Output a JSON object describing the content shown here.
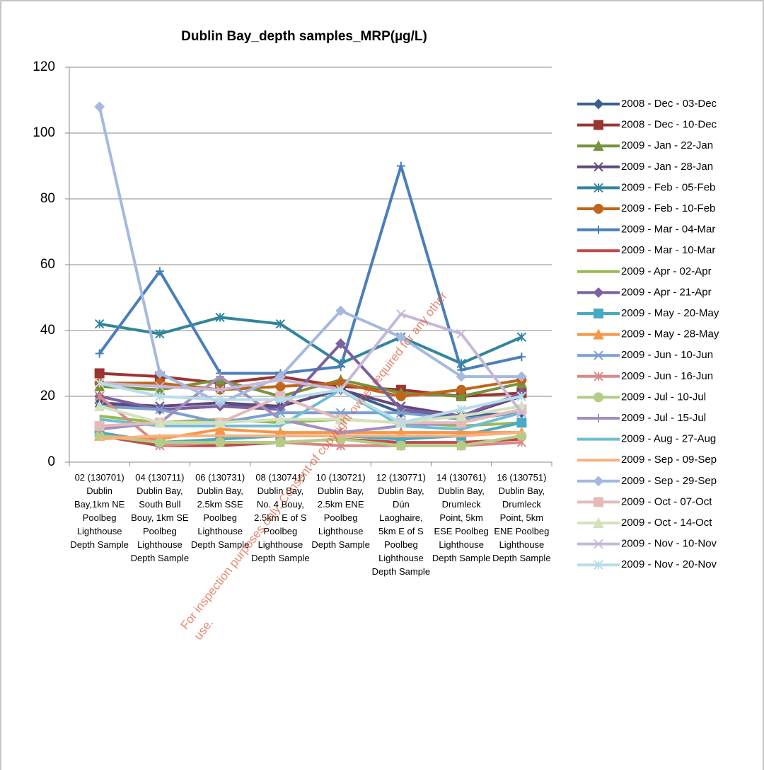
{
  "chart_data": {
    "type": "line",
    "title": "Dublin Bay_depth samples_MRP(µg/L)",
    "categories": [
      "02 (130701) Dublin Bay,1km NE Poolbeg Lighthouse Depth Sample",
      "04 (130711) Dublin Bay, South Bull Bouy, 1km SE Poolbeg Lighthouse Depth Sample",
      "06 (130731) Dublin Bay, 2.5km SSE Poolbeg Lighthouse Depth Sample",
      "08 (130741) Dublin Bay, No. 4 Bouy, 2.5km E of S Poolbeg Lighthouse Depth Sample",
      "10 (130721) Dublin Bay, 2.5km ENE Poolbeg Lighthouse Depth Sample",
      "12 (130771) Dublin Bay, Dún Laoghaire, 5km E of S Poolbeg Lighthouse Depth Sample",
      "14 (130761) Dublin Bay, Drumleck Point, 5km ESE Poolbeg Lighthouse Depth Sample",
      "16 (130751) Dublin Bay, Drumleck Point, 5km ENE Poolbeg Lighthouse Depth Sample"
    ],
    "ylim": [
      0,
      120
    ],
    "yticks": [
      0,
      20,
      40,
      60,
      80,
      100,
      120
    ],
    "grid": true,
    "legend": "right",
    "watermark": "For inspection purposes only. Consent of copyright owner required for any other use.",
    "series": [
      {
        "name": "2008 - Dec - 03-Dec",
        "color": "#3a5f8f",
        "marker": "diamond",
        "values": [
          18,
          16,
          17,
          17,
          22,
          15,
          14,
          15
        ]
      },
      {
        "name": "2008 - Dec - 10-Dec",
        "color": "#9b3532",
        "marker": "square",
        "values": [
          27,
          26,
          24,
          26,
          23,
          22,
          20,
          21
        ]
      },
      {
        "name": "2009 - Jan - 22-Jan",
        "color": "#77933c",
        "marker": "triangle",
        "values": [
          23,
          22,
          25,
          20,
          25,
          21,
          20,
          24
        ]
      },
      {
        "name": "2009 - Jan - 28-Jan",
        "color": "#5f4a7b",
        "marker": "x",
        "values": [
          18,
          17,
          18,
          17,
          22,
          17,
          14,
          20
        ]
      },
      {
        "name": "2009 - Feb - 05-Feb",
        "color": "#31859c",
        "marker": "star",
        "values": [
          42,
          39,
          44,
          42,
          30,
          38,
          30,
          38
        ]
      },
      {
        "name": "2009 - Feb - 10-Feb",
        "color": "#c0661a",
        "marker": "circle",
        "values": [
          24,
          24,
          22,
          23,
          24,
          20,
          22,
          25
        ]
      },
      {
        "name": "2009 - Mar - 04-Mar",
        "color": "#4a7ebb",
        "marker": "plus",
        "values": [
          33,
          58,
          27,
          27,
          29,
          90,
          28,
          32
        ]
      },
      {
        "name": "2009 - Mar - 10-Mar",
        "color": "#be4b48",
        "marker": "none",
        "values": [
          8,
          5,
          5,
          6,
          7,
          6,
          6,
          7
        ]
      },
      {
        "name": "2009 - Apr - 02-Apr",
        "color": "#98b954",
        "marker": "none",
        "values": [
          14,
          12,
          13,
          12,
          13,
          12,
          11,
          12
        ]
      },
      {
        "name": "2009 - Apr - 21-Apr",
        "color": "#7d60a0",
        "marker": "diamond",
        "values": [
          20,
          16,
          17,
          16,
          36,
          16,
          14,
          21
        ]
      },
      {
        "name": "2009 - May - 20-May",
        "color": "#46aac5",
        "marker": "square",
        "values": [
          9,
          6,
          7,
          8,
          8,
          7,
          8,
          12
        ]
      },
      {
        "name": "2009 - May - 28-May",
        "color": "#f79646",
        "marker": "triangle",
        "values": [
          8,
          7,
          10,
          9,
          9,
          9,
          9,
          9
        ]
      },
      {
        "name": "2009 - Jun - 10-Jun",
        "color": "#7c9fd0",
        "marker": "x",
        "values": [
          17,
          16,
          12,
          15,
          15,
          15,
          13,
          15
        ]
      },
      {
        "name": "2009 - Jun - 16-Jun",
        "color": "#d88986",
        "marker": "star",
        "values": [
          20,
          5,
          6,
          6,
          5,
          5,
          5,
          6
        ]
      },
      {
        "name": "2009 - Jul - 10-Jul",
        "color": "#b3cd85",
        "marker": "circle",
        "values": [
          8,
          6,
          6,
          6,
          7,
          5,
          5,
          8
        ]
      },
      {
        "name": "2009 - Jul - 15-Jul",
        "color": "#a18fbf",
        "marker": "plus",
        "values": [
          10,
          12,
          26,
          13,
          9,
          11,
          12,
          16
        ]
      },
      {
        "name": "2009 - Aug - 27-Aug",
        "color": "#6fbdd4",
        "marker": "none",
        "values": [
          13,
          11,
          11,
          11,
          22,
          11,
          10,
          15
        ]
      },
      {
        "name": "2009 - Sep - 09-Sep",
        "color": "#f9b07f",
        "marker": "none",
        "values": [
          7,
          8,
          8,
          8,
          8,
          8,
          8,
          9
        ]
      },
      {
        "name": "2009 - Sep - 29-Sep",
        "color": "#a5b9df",
        "marker": "diamond",
        "values": [
          108,
          27,
          18,
          26,
          46,
          38,
          26,
          26
        ]
      },
      {
        "name": "2009 - Oct - 07-Oct",
        "color": "#e6b9b8",
        "marker": "square",
        "values": [
          11,
          12,
          12,
          20,
          13,
          12,
          12,
          16
        ]
      },
      {
        "name": "2009 - Oct - 14-Oct",
        "color": "#d3e2bc",
        "marker": "triangle",
        "values": [
          17,
          12,
          12,
          13,
          13,
          12,
          14,
          17
        ]
      },
      {
        "name": "2009 - Nov - 10-Nov",
        "color": "#c5b8d9",
        "marker": "x",
        "values": [
          24,
          23,
          22,
          25,
          22,
          45,
          39,
          15
        ]
      },
      {
        "name": "2009 - Nov - 20-Nov",
        "color": "#b7dde8",
        "marker": "star",
        "values": [
          24,
          20,
          19,
          19,
          22,
          12,
          16,
          20
        ]
      }
    ]
  }
}
